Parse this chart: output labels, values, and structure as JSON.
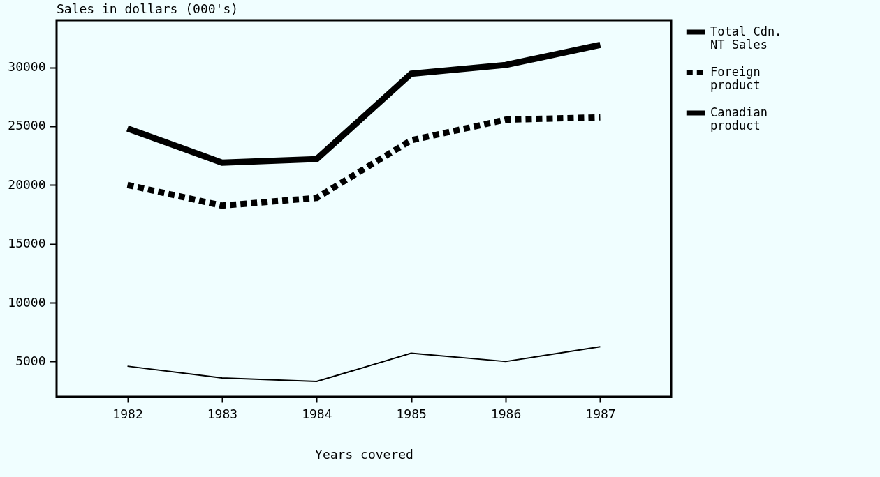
{
  "chart_data": {
    "type": "line",
    "title": "Sales in dollars (000's)",
    "xlabel": "Years covered",
    "categories": [
      "1982",
      "1983",
      "1984",
      "1985",
      "1986",
      "1987"
    ],
    "series": [
      {
        "name": "Total Cdn.\nNT Sales",
        "color": "#000000",
        "line_style": "solid",
        "values": [
          24800,
          21900,
          22200,
          29450,
          30200,
          31900
        ]
      },
      {
        "name": "Foreign\nproduct",
        "color": "#000000",
        "line_style": "dashed",
        "values": [
          20000,
          18250,
          18900,
          23800,
          25550,
          25750
        ]
      },
      {
        "name": "Canadian\nproduct",
        "color": "#000000",
        "line_style": "solid",
        "values": [
          4600,
          3600,
          3300,
          5700,
          5000,
          6250
        ]
      }
    ],
    "ylim": [
      2000,
      34000
    ],
    "yticks": [
      5000,
      10000,
      15000,
      20000,
      25000,
      30000
    ],
    "grid": false,
    "legend": "right"
  }
}
